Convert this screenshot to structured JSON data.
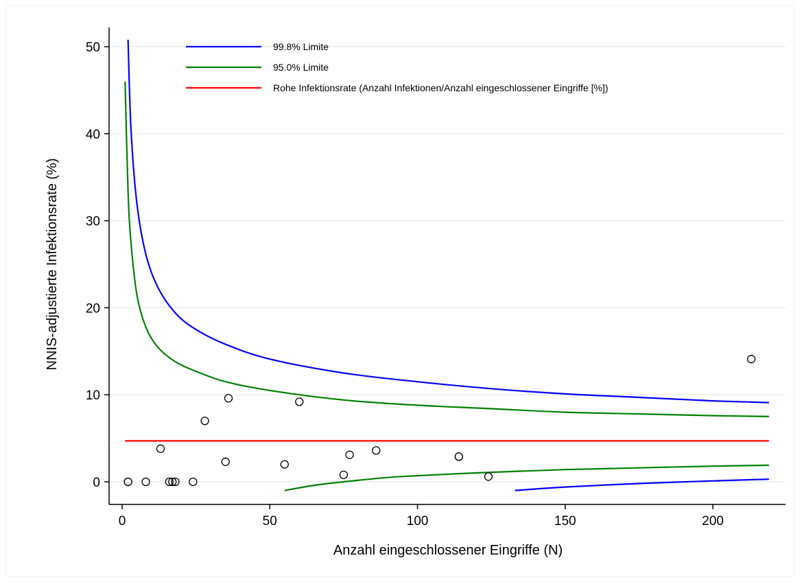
{
  "chart_data": {
    "type": "scatter",
    "title": "",
    "xlabel": "Anzahl eingeschlossener Eingriffe (N)",
    "ylabel": "NNIS-adjustierte Infektionsrate (%)",
    "xlim": [
      -1,
      222
    ],
    "ylim": [
      -2.6,
      52
    ],
    "xticks": [
      0,
      50,
      100,
      150,
      200
    ],
    "yticks": [
      0,
      10,
      20,
      30,
      40,
      50
    ],
    "grid": true,
    "legend_position": "top",
    "colors": {
      "limit_998": "#0000ff",
      "limit_950": "#008000",
      "crude": "#ff0000",
      "points": "#000000",
      "grid": "#e8eef2"
    },
    "legend": [
      {
        "key": "limit_998",
        "label": "99.8% Limite"
      },
      {
        "key": "limit_950",
        "label": "95.0% Limite"
      },
      {
        "key": "crude",
        "label": "Rohe Infektionsrate (Anzahl Infektionen/Anzahl eingeschlossener Eingriffe [%])"
      }
    ],
    "crude_rate": 4.7,
    "crude_range": [
      1,
      219
    ],
    "series": [
      {
        "name": "99.8% Limite",
        "key": "limit_998",
        "role": "upper",
        "x": [
          2,
          3,
          5,
          8,
          12,
          18,
          25,
          35,
          50,
          75,
          100,
          125,
          150,
          175,
          200,
          219
        ],
        "y": [
          50.8,
          40.5,
          32.0,
          26.2,
          22.4,
          19.4,
          17.5,
          15.8,
          14.1,
          12.5,
          11.5,
          10.7,
          10.1,
          9.7,
          9.3,
          9.1
        ]
      },
      {
        "name": "99.8% Limite",
        "key": "limit_998",
        "role": "lower",
        "x": [
          133,
          150,
          175,
          200,
          219
        ],
        "y": [
          -1.0,
          -0.6,
          -0.2,
          0.1,
          0.3
        ]
      },
      {
        "name": "95.0% Limite",
        "key": "limit_950",
        "role": "upper",
        "x": [
          1,
          2,
          3,
          5,
          8,
          12,
          18,
          25,
          35,
          50,
          75,
          100,
          125,
          150,
          175,
          200,
          219
        ],
        "y": [
          46.0,
          33.5,
          27.5,
          21.5,
          17.8,
          15.5,
          13.8,
          12.7,
          11.5,
          10.5,
          9.4,
          8.8,
          8.4,
          8.0,
          7.8,
          7.6,
          7.5
        ]
      },
      {
        "name": "95.0% Limite",
        "key": "limit_950",
        "role": "lower",
        "x": [
          55,
          65,
          75,
          90,
          100,
          125,
          150,
          175,
          200,
          219
        ],
        "y": [
          -1.0,
          -0.4,
          0.0,
          0.5,
          0.7,
          1.1,
          1.4,
          1.6,
          1.8,
          1.9
        ]
      }
    ],
    "points": {
      "x": [
        2,
        2,
        8,
        13,
        16,
        17,
        18,
        24,
        28,
        35,
        36,
        55,
        60,
        75,
        77,
        86,
        114,
        114,
        124,
        213
      ],
      "y": [
        0.0,
        0.0,
        0.0,
        3.8,
        0.0,
        0.0,
        0.0,
        0.0,
        7.0,
        2.3,
        9.6,
        2.0,
        9.2,
        0.8,
        3.1,
        3.6,
        2.9,
        2.9,
        0.6,
        14.1
      ]
    }
  }
}
